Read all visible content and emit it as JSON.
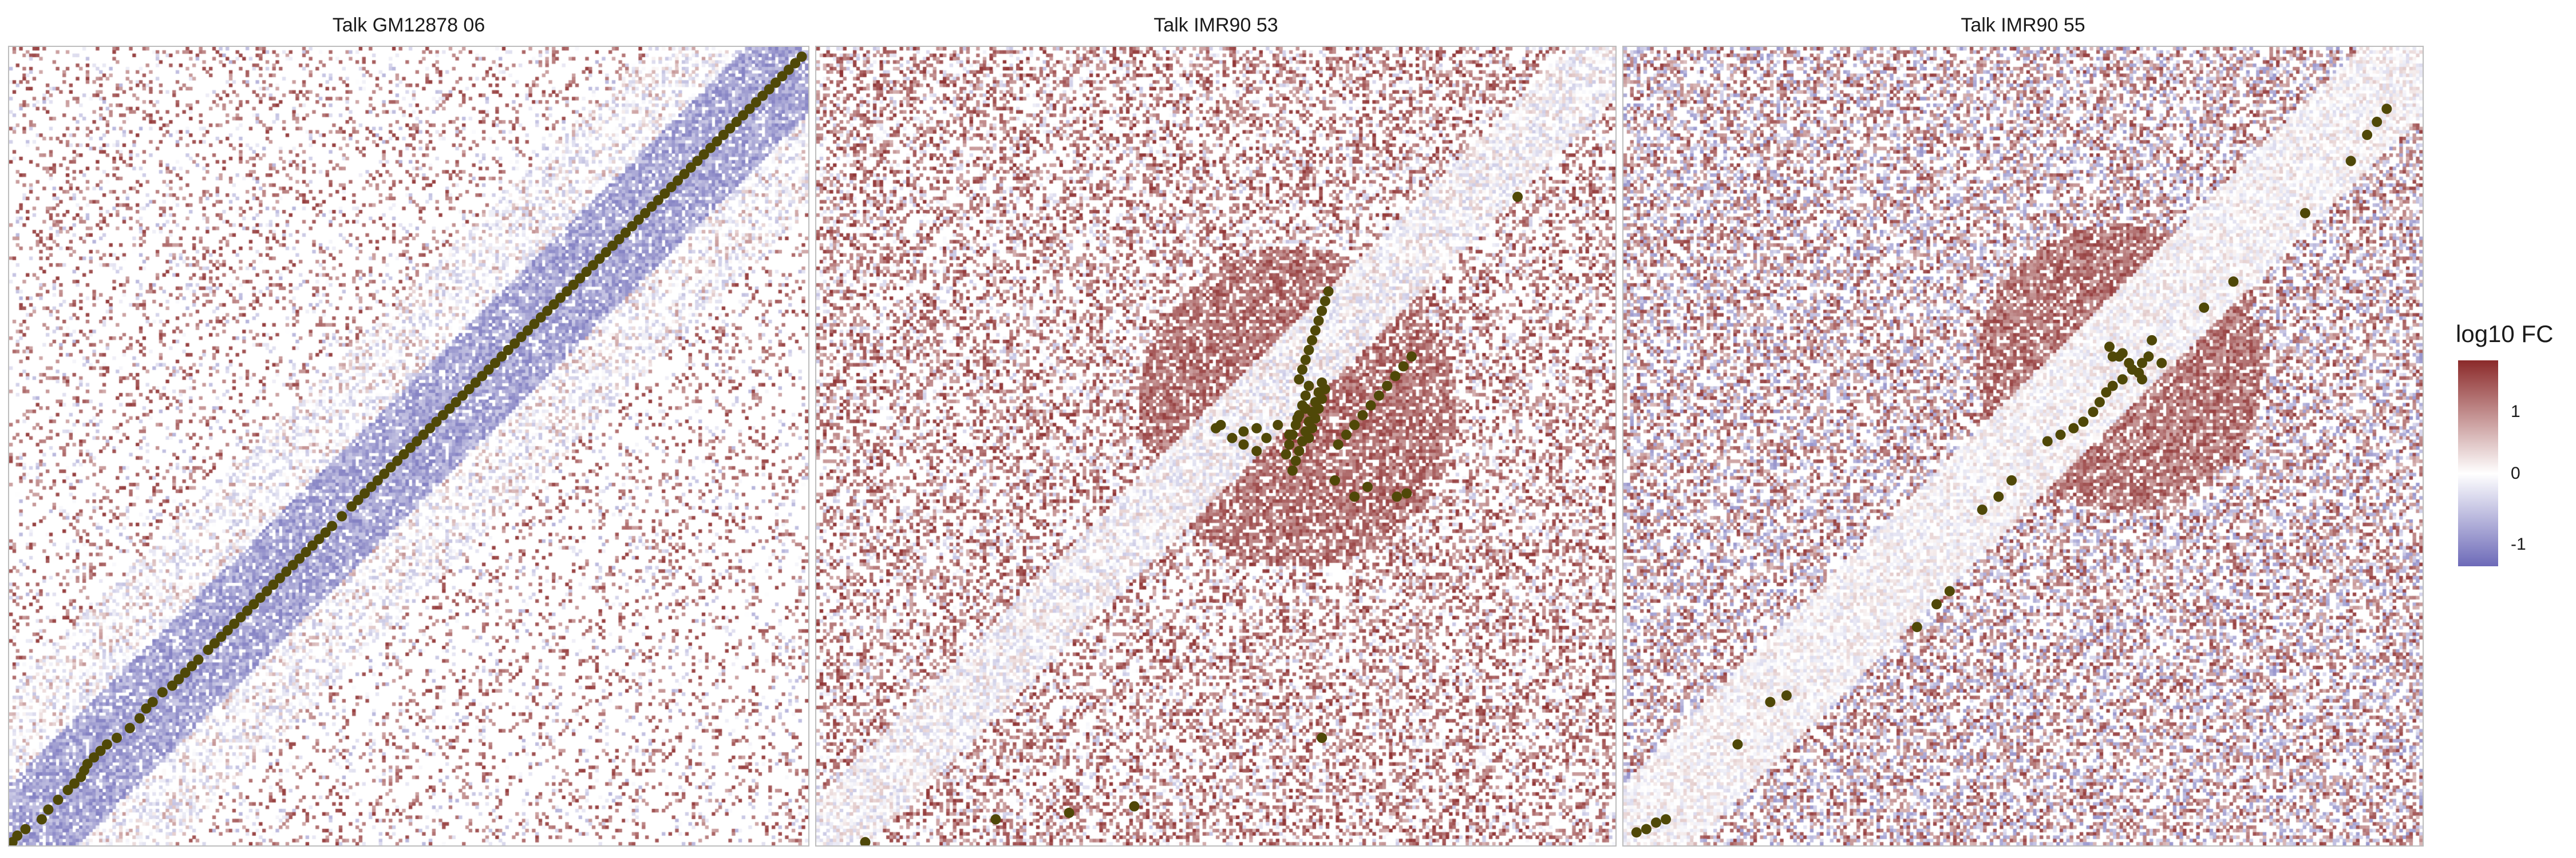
{
  "panels": [
    {
      "title": "Talk GM12878 06"
    },
    {
      "title": "Talk IMR90 53"
    },
    {
      "title": "Talk IMR90 55"
    }
  ],
  "legend": {
    "title": "log10 FC",
    "ticks": [
      "1",
      "0",
      "-1"
    ]
  },
  "colors": {
    "high": "#8b2a2a",
    "mid": "#ffffff",
    "low": "#6d6ab8",
    "point": "#4f4808",
    "panel_border": "#bdbdbd"
  },
  "chart_data": [
    {
      "type": "heatmap",
      "title": "Talk GM12878 06",
      "color_scale": {
        "label": "log10 FC",
        "range": [
          -1.3,
          1.6
        ],
        "ticks": [
          1,
          0,
          -1
        ]
      },
      "overlay": {
        "type": "scatter",
        "x": [
          2,
          5,
          10,
          20,
          24,
          30,
          36,
          40,
          44,
          46,
          48,
          52,
          56,
          60,
          66,
          74,
          80,
          84,
          88,
          94,
          100,
          104,
          108,
          112,
          116,
          122,
          126,
          130,
          134,
          138,
          142,
          146,
          150,
          154,
          158,
          162,
          166,
          170,
          174,
          178,
          182,
          186,
          190,
          194,
          198,
          204,
          210,
          214,
          218,
          222,
          226,
          230,
          234,
          238,
          242,
          246,
          250,
          254,
          258,
          262,
          266,
          270,
          274,
          278,
          282,
          286,
          290,
          294,
          298,
          302,
          306,
          310,
          314,
          318,
          322,
          326,
          330,
          334,
          338,
          342,
          346,
          350,
          354,
          358,
          362,
          366,
          370,
          374,
          378,
          382,
          386,
          390,
          394,
          398,
          402,
          406,
          410,
          414,
          418,
          422,
          426,
          430,
          434,
          438,
          442,
          446,
          450,
          454,
          458,
          462,
          466,
          470,
          474,
          478,
          482,
          486
        ],
        "y": [
          2,
          6,
          10,
          16,
          22,
          28,
          34,
          38,
          42,
          46,
          50,
          54,
          58,
          62,
          66,
          72,
          78,
          84,
          88,
          94,
          98,
          102,
          106,
          110,
          114,
          120,
          124,
          128,
          132,
          136,
          140,
          144,
          148,
          152,
          156,
          160,
          164,
          168,
          172,
          176,
          180,
          184,
          188,
          192,
          196,
          202,
          208,
          212,
          216,
          220,
          224,
          228,
          232,
          236,
          240,
          244,
          248,
          252,
          256,
          260,
          264,
          268,
          272,
          276,
          280,
          284,
          288,
          292,
          296,
          300,
          304,
          308,
          312,
          316,
          320,
          324,
          328,
          332,
          336,
          340,
          344,
          348,
          352,
          356,
          360,
          364,
          368,
          372,
          376,
          380,
          384,
          388,
          392,
          396,
          400,
          404,
          408,
          412,
          416,
          420,
          424,
          428,
          432,
          436,
          440,
          444,
          448,
          452,
          456,
          460,
          464,
          468,
          472,
          476,
          480,
          484
        ]
      }
    },
    {
      "type": "heatmap",
      "title": "Talk IMR90 53",
      "color_scale": {
        "label": "log10 FC",
        "range": [
          -1.3,
          1.6
        ],
        "ticks": [
          1,
          0,
          -1
        ]
      },
      "overlay": {
        "type": "scatter",
        "x": [
          30,
          110,
          155,
          195,
          310,
          430,
          248,
          255,
          262,
          270,
          276,
          283,
          290,
          295,
          300,
          302,
          304,
          306,
          308,
          310,
          312,
          296,
          298,
          300,
          302,
          304,
          306,
          308,
          310,
          312,
          314,
          292,
          294,
          296,
          298,
          300,
          302,
          304,
          306,
          308,
          310,
          288,
          290,
          292,
          294,
          296,
          298,
          300,
          302,
          320,
          325,
          330,
          335,
          340,
          345,
          350,
          355,
          360,
          365,
          245,
          262,
          270,
          318,
          330,
          338,
          356,
          362
        ],
        "y": [
          2,
          16,
          20,
          24,
          66,
          398,
          258,
          250,
          254,
          256,
          250,
          258,
          252,
          262,
          268,
          250,
          256,
          262,
          268,
          274,
          280,
          286,
          292,
          298,
          304,
          310,
          316,
          322,
          328,
          334,
          340,
          230,
          236,
          242,
          248,
          254,
          260,
          266,
          272,
          278,
          284,
          240,
          246,
          252,
          258,
          264,
          270,
          276,
          282,
          246,
          252,
          258,
          264,
          270,
          276,
          282,
          288,
          294,
          300,
          256,
          246,
          242,
          224,
          214,
          220,
          214,
          216
        ]
      }
    },
    {
      "type": "heatmap",
      "title": "Talk IMR90 55",
      "color_scale": {
        "label": "log10 FC",
        "range": [
          -1.3,
          1.6
        ],
        "ticks": [
          1,
          0,
          -1
        ]
      },
      "overlay": {
        "type": "scatter",
        "x": [
          8,
          14,
          20,
          26,
          70,
          90,
          100,
          180,
          192,
          200,
          220,
          230,
          238,
          260,
          268,
          276,
          282,
          288,
          292,
          296,
          300,
          306,
          312,
          318,
          322,
          298,
          304,
          310,
          316,
          300,
          306,
          312,
          318,
          324,
          330,
          356,
          374,
          418,
          446,
          456,
          462,
          468
        ],
        "y": [
          8,
          10,
          14,
          16,
          62,
          88,
          92,
          134,
          148,
          156,
          206,
          214,
          224,
          248,
          252,
          256,
          260,
          266,
          272,
          278,
          282,
          286,
          292,
          296,
          300,
          306,
          300,
          296,
          290,
          300,
          302,
          292,
          286,
          310,
          296,
          330,
          346,
          388,
          420,
          436,
          444,
          452
        ]
      }
    }
  ]
}
